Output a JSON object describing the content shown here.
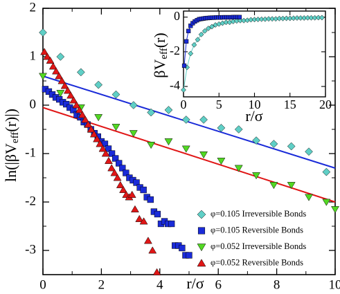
{
  "chart_data": {
    "type": "scatter",
    "main": {
      "xlabel": "r/σ",
      "ylabel_main": "ln(|βV",
      "ylabel_sub": "eff",
      "ylabel_tail": "(r)|)",
      "xlim": [
        0,
        10
      ],
      "ylim": [
        -3.5,
        2
      ],
      "xticks": [
        0,
        2,
        4,
        6,
        8,
        10
      ],
      "yticks": [
        -3,
        -2,
        -1,
        0,
        1,
        2
      ],
      "series": [
        {
          "name": "φ=0.105 Irreversible Bonds",
          "marker": "diamond",
          "color": "#5fcfc6",
          "x": [
            0.0,
            0.6,
            1.3,
            1.9,
            2.5,
            3.1,
            3.7,
            4.3,
            4.9,
            5.5,
            6.1,
            6.7,
            7.3,
            7.9,
            8.5,
            9.1,
            9.7
          ],
          "y": [
            1.5,
            1.0,
            0.68,
            0.42,
            0.22,
            0.0,
            -0.15,
            -0.1,
            -0.3,
            -0.3,
            -0.47,
            -0.5,
            -0.73,
            -0.8,
            -0.85,
            -0.96,
            -1.38
          ]
        },
        {
          "name": "φ=0.105 Reversible Bonds",
          "marker": "square",
          "color": "#1a2bd8",
          "x": [
            0.08,
            0.2,
            0.32,
            0.44,
            0.56,
            0.68,
            0.8,
            0.92,
            1.04,
            1.16,
            1.28,
            1.4,
            1.52,
            1.64,
            1.76,
            1.88,
            2.0,
            2.12,
            2.24,
            2.36,
            2.48,
            2.6,
            2.72,
            2.84,
            2.96,
            3.08,
            3.2,
            3.32,
            3.44,
            3.56,
            3.68,
            3.8,
            3.92,
            4.04,
            4.16,
            4.28,
            4.4,
            4.52,
            4.64,
            4.76,
            4.88,
            5.0
          ],
          "y": [
            0.33,
            0.28,
            0.22,
            0.16,
            0.12,
            0.06,
            0.02,
            -0.05,
            -0.1,
            -0.2,
            -0.25,
            -0.35,
            -0.4,
            -0.5,
            -0.58,
            -0.65,
            -0.75,
            -0.8,
            -0.9,
            -1.0,
            -1.1,
            -1.2,
            -1.3,
            -1.4,
            -1.5,
            -1.55,
            -1.6,
            -1.7,
            -1.75,
            -1.9,
            -1.95,
            -2.2,
            -2.25,
            -2.45,
            -2.4,
            -2.45,
            -2.45,
            -2.9,
            -2.9,
            -2.95,
            -3.1,
            -3.1
          ]
        },
        {
          "name": "φ=0.052 Irreversible Bonds",
          "marker": "triangle-down",
          "color": "#52d823",
          "x": [
            0.0,
            0.6,
            1.3,
            1.9,
            2.5,
            3.1,
            3.7,
            4.3,
            4.9,
            5.5,
            6.1,
            6.7,
            7.3,
            7.9,
            8.5,
            9.1,
            9.7,
            10.0
          ],
          "y": [
            0.6,
            0.25,
            -0.05,
            -0.25,
            -0.45,
            -0.58,
            -0.82,
            -0.75,
            -0.9,
            -1.02,
            -1.15,
            -1.3,
            -1.45,
            -1.65,
            -1.65,
            -1.9,
            -2.0,
            -2.15
          ]
        },
        {
          "name": "φ=0.052 Reversible Bonds",
          "marker": "triangle-up",
          "color": "#e01616",
          "x": [
            0.05,
            0.15,
            0.25,
            0.35,
            0.45,
            0.55,
            0.65,
            0.75,
            0.85,
            0.95,
            1.05,
            1.15,
            1.25,
            1.35,
            1.45,
            1.55,
            1.65,
            1.75,
            1.85,
            1.95,
            2.05,
            2.15,
            2.25,
            2.35,
            2.45,
            2.55,
            2.65,
            2.75,
            2.85,
            2.95,
            3.05,
            3.15,
            3.3,
            3.45,
            3.6,
            3.75,
            3.9
          ],
          "y": [
            1.1,
            1.0,
            0.92,
            0.8,
            0.7,
            0.6,
            0.5,
            0.4,
            0.3,
            0.2,
            0.1,
            0.0,
            -0.1,
            -0.2,
            -0.3,
            -0.4,
            -0.5,
            -0.6,
            -0.7,
            -0.8,
            -0.9,
            -1.0,
            -1.15,
            -1.3,
            -1.4,
            -1.5,
            -1.65,
            -1.75,
            -1.85,
            -1.9,
            -1.85,
            -2.15,
            -2.35,
            -2.4,
            -2.8,
            -3.0,
            -3.45
          ]
        }
      ],
      "fit_lines": [
        {
          "color": "#1a2bd8",
          "x": [
            0,
            10
          ],
          "y": [
            0.6,
            -1.3
          ]
        },
        {
          "color": "#e01616",
          "x": [
            0,
            10
          ],
          "y": [
            -0.05,
            -2.0
          ]
        }
      ]
    },
    "inset": {
      "xlabel": "r/σ",
      "ylabel_main": "βV",
      "ylabel_sub": "eff",
      "ylabel_tail": "(r)",
      "xlim": [
        0,
        20
      ],
      "ylim": [
        -4.6,
        0.35
      ],
      "xticks": [
        0,
        5,
        10,
        15,
        20
      ],
      "yticks": [
        -4,
        -2,
        0
      ],
      "series": [
        {
          "name": "φ=0.105 Irreversible Bonds",
          "marker": "diamond",
          "color": "#5fcfc6",
          "x": [
            0.0,
            0.5,
            1.0,
            1.5,
            2.0,
            2.5,
            3.0,
            3.5,
            4.0,
            4.5,
            5.0,
            5.5,
            6.0,
            6.5,
            7.0,
            7.5,
            8.0,
            8.5,
            9.0,
            9.5,
            10.0,
            10.5,
            11.0,
            11.5,
            12.0,
            12.5,
            13.0,
            13.5,
            14.0,
            14.5,
            15.0,
            15.5,
            16.0,
            16.5,
            17.0,
            17.5,
            18.0,
            18.5,
            19.0,
            19.5
          ],
          "y": [
            -4.2,
            -2.9,
            -2.1,
            -1.6,
            -1.3,
            -1.0,
            -0.8,
            -0.65,
            -0.55,
            -0.45,
            -0.4,
            -0.35,
            -0.3,
            -0.3,
            -0.25,
            -0.22,
            -0.2,
            -0.2,
            -0.18,
            -0.15,
            -0.14,
            -0.13,
            -0.12,
            -0.12,
            -0.1,
            -0.1,
            -0.1,
            -0.08,
            -0.08,
            -0.07,
            -0.07,
            -0.06,
            -0.05,
            -0.05,
            -0.05,
            -0.04,
            -0.04,
            -0.04,
            -0.03,
            -0.03
          ]
        },
        {
          "name": "φ=0.105 Reversible Bonds",
          "marker": "square",
          "color": "#1a2bd8",
          "x": [
            0.1,
            0.4,
            0.7,
            1.0,
            1.3,
            1.6,
            1.9,
            2.2,
            2.5,
            2.8,
            3.1,
            3.4,
            3.7,
            4.0,
            4.3,
            4.6,
            4.9,
            5.2,
            5.5,
            5.8,
            6.1,
            6.4,
            6.7,
            7.0,
            7.3,
            7.6,
            7.9
          ],
          "y": [
            -2.8,
            -1.4,
            -0.8,
            -0.5,
            -0.35,
            -0.25,
            -0.18,
            -0.12,
            -0.1,
            -0.08,
            -0.06,
            -0.05,
            -0.04,
            -0.03,
            -0.03,
            -0.02,
            -0.02,
            -0.02,
            -0.01,
            -0.01,
            -0.01,
            -0.01,
            -0.01,
            0.0,
            0.0,
            0.0,
            0.0
          ]
        }
      ]
    },
    "legend": {
      "position": "bottom-right",
      "entries": [
        {
          "label": "φ=0.105 Irreversible Bonds",
          "marker": "diamond",
          "color": "#5fcfc6"
        },
        {
          "label": "φ=0.105 Reversible Bonds",
          "marker": "square",
          "color": "#1a2bd8"
        },
        {
          "label": "φ=0.052 Irreversible Bonds",
          "marker": "triangle-down",
          "color": "#52d823"
        },
        {
          "label": "φ=0.052 Reversible Bonds",
          "marker": "triangle-up",
          "color": "#e01616"
        }
      ]
    }
  }
}
